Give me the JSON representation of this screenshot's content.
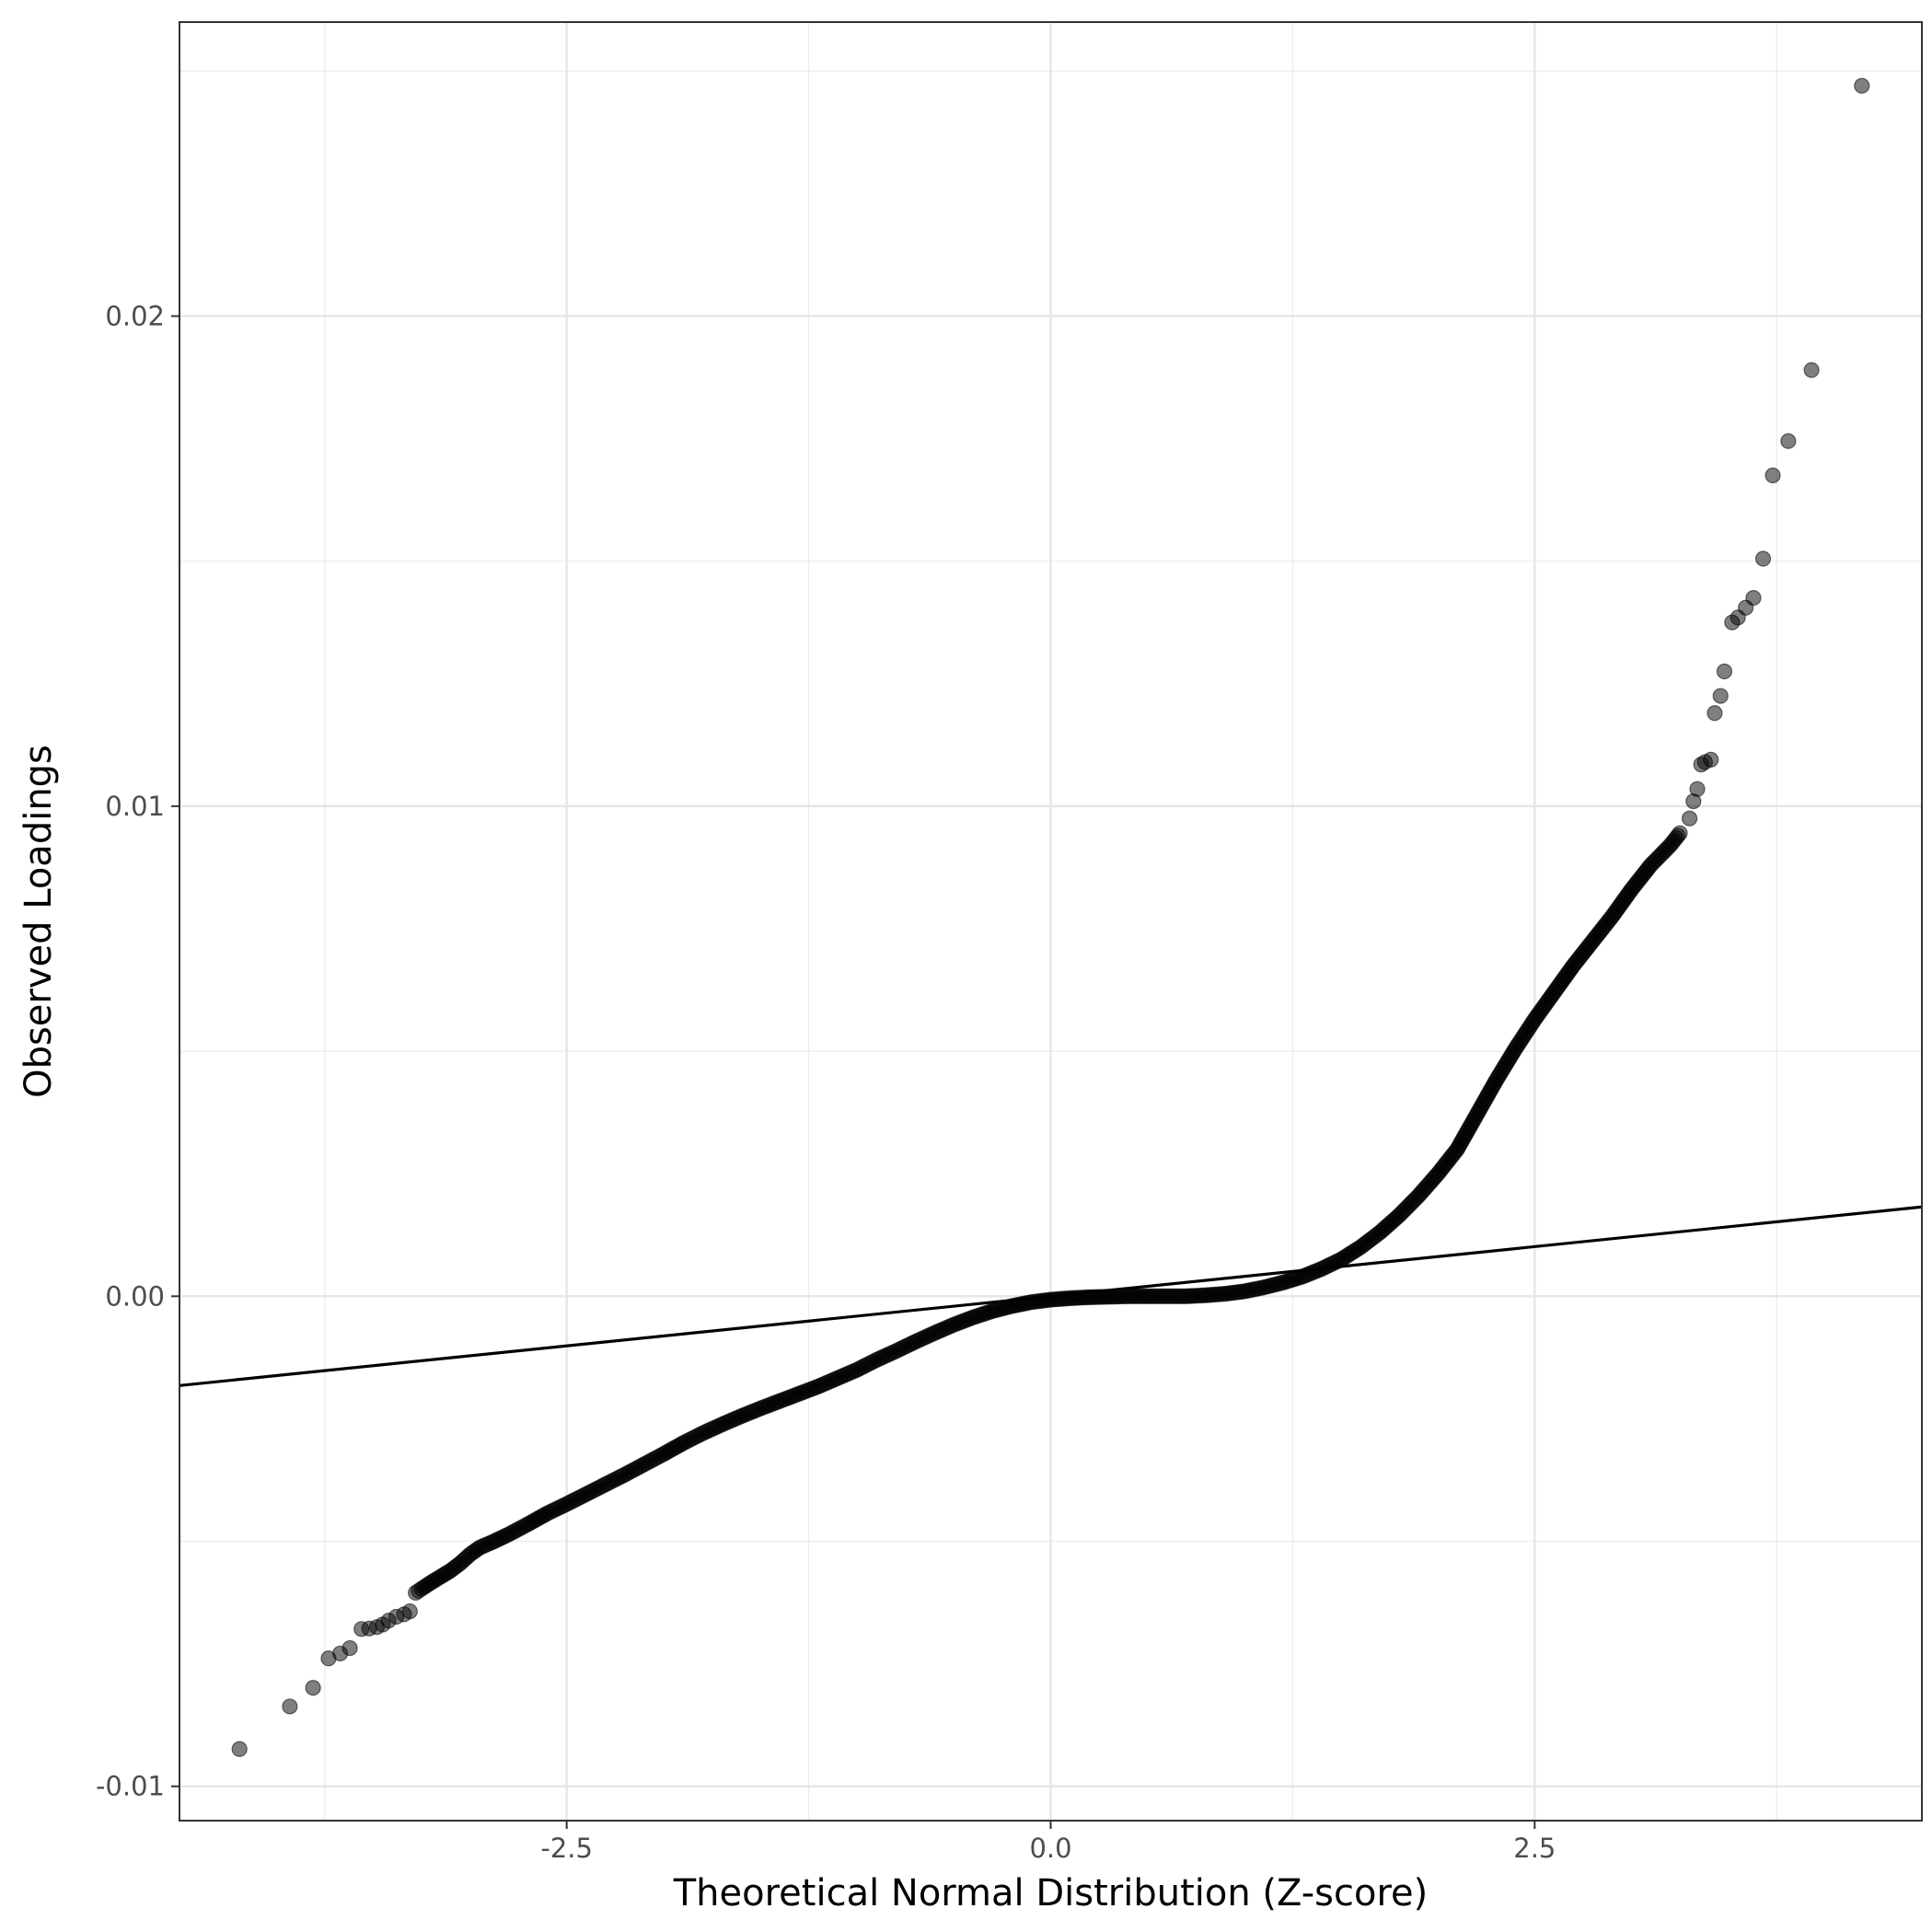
{
  "chart_data": {
    "type": "scatter",
    "title": "",
    "xlabel": "Theoretical Normal Distribution (Z-score)",
    "ylabel": "Observed Loadings",
    "xlim": [
      -4.5,
      4.5
    ],
    "ylim": [
      -0.0107,
      0.026
    ],
    "x_ticks": [
      {
        "value": -2.5,
        "label": "-2.5"
      },
      {
        "value": 0.0,
        "label": "0.0"
      },
      {
        "value": 2.5,
        "label": "2.5"
      }
    ],
    "y_ticks": [
      {
        "value": -0.01,
        "label": "-0.01"
      },
      {
        "value": 0.0,
        "label": "0.00"
      },
      {
        "value": 0.01,
        "label": "0.01"
      },
      {
        "value": 0.02,
        "label": "0.02"
      }
    ],
    "grid": true,
    "point_color": "#000000",
    "point_opacity": 0.5,
    "reference_line": {
      "slope": 0.000405,
      "intercept": 0.0,
      "color": "#000000"
    },
    "series": [
      {
        "points": [
          [
            -4.19,
            -0.00924
          ],
          [
            -3.93,
            -0.00837
          ],
          [
            -3.81,
            -0.00799
          ],
          [
            -3.73,
            -0.00739
          ],
          [
            -3.67,
            -0.00729
          ],
          [
            -3.62,
            -0.00718
          ],
          [
            -3.56,
            -0.00679
          ],
          [
            -3.52,
            -0.00678
          ],
          [
            -3.48,
            -0.00675
          ],
          [
            -3.45,
            -0.0067
          ],
          [
            -3.42,
            -0.00662
          ],
          [
            -3.38,
            -0.00654
          ],
          [
            -3.34,
            -0.00649
          ],
          [
            -3.31,
            -0.00643
          ],
          [
            -3.28,
            -0.00605
          ],
          [
            -3.25,
            -0.00597
          ],
          [
            -3.2,
            -0.00584
          ],
          [
            -3.15,
            -0.00572
          ],
          [
            -3.1,
            -0.0056
          ],
          [
            -3.05,
            -0.00545
          ],
          [
            -3.0,
            -0.00527
          ],
          [
            -2.95,
            -0.00513
          ],
          [
            -2.88,
            -0.00501
          ],
          [
            -2.8,
            -0.00486
          ],
          [
            -2.7,
            -0.00465
          ],
          [
            -2.6,
            -0.00443
          ],
          [
            -2.5,
            -0.00424
          ],
          [
            -2.4,
            -0.00404
          ],
          [
            -2.3,
            -0.00384
          ],
          [
            -2.2,
            -0.00364
          ],
          [
            -2.1,
            -0.00343
          ],
          [
            -2.0,
            -0.00322
          ],
          [
            -1.9,
            -0.003
          ],
          [
            -1.8,
            -0.0028
          ],
          [
            -1.7,
            -0.00262
          ],
          [
            -1.6,
            -0.00245
          ],
          [
            -1.5,
            -0.00229
          ],
          [
            -1.4,
            -0.00214
          ],
          [
            -1.3,
            -0.00199
          ],
          [
            -1.2,
            -0.00184
          ],
          [
            -1.1,
            -0.00167
          ],
          [
            -1.0,
            -0.0015
          ],
          [
            -0.9,
            -0.0013
          ],
          [
            -0.8,
            -0.00112
          ],
          [
            -0.7,
            -0.00093
          ],
          [
            -0.6,
            -0.00075
          ],
          [
            -0.5,
            -0.00058
          ],
          [
            -0.4,
            -0.00043
          ],
          [
            -0.3,
            -0.0003
          ],
          [
            -0.2,
            -0.0002
          ],
          [
            -0.1,
            -0.00012
          ],
          [
            0.0,
            -7e-05
          ],
          [
            0.1,
            -4e-05
          ],
          [
            0.2,
            -2e-05
          ],
          [
            0.3,
            -1e-05
          ],
          [
            0.4,
            0.0
          ],
          [
            0.5,
            0.0
          ],
          [
            0.6,
            0.0
          ],
          [
            0.7,
            0.0
          ],
          [
            0.8,
            2e-05
          ],
          [
            0.9,
            5e-05
          ],
          [
            1.0,
            0.0001
          ],
          [
            1.1,
            0.00018
          ],
          [
            1.2,
            0.00028
          ],
          [
            1.3,
            0.0004
          ],
          [
            1.4,
            0.00056
          ],
          [
            1.5,
            0.00075
          ],
          [
            1.6,
            0.001
          ],
          [
            1.7,
            0.0013
          ],
          [
            1.8,
            0.00165
          ],
          [
            1.9,
            0.00205
          ],
          [
            2.0,
            0.0025
          ],
          [
            2.1,
            0.003
          ],
          [
            2.2,
            0.0037
          ],
          [
            2.3,
            0.0044
          ],
          [
            2.4,
            0.00505
          ],
          [
            2.5,
            0.00565
          ],
          [
            2.6,
            0.0062
          ],
          [
            2.7,
            0.00675
          ],
          [
            2.8,
            0.00725
          ],
          [
            2.9,
            0.00775
          ],
          [
            3.0,
            0.0083
          ],
          [
            3.1,
            0.0088
          ],
          [
            3.2,
            0.0092
          ],
          [
            3.25,
            0.00945
          ],
          [
            3.3,
            0.00975
          ],
          [
            3.32,
            0.0101
          ],
          [
            3.34,
            0.01035
          ],
          [
            3.36,
            0.01085
          ],
          [
            3.38,
            0.0109
          ],
          [
            3.41,
            0.01095
          ],
          [
            3.43,
            0.0119
          ],
          [
            3.46,
            0.01225
          ],
          [
            3.48,
            0.01275
          ],
          [
            3.52,
            0.01375
          ],
          [
            3.55,
            0.01385
          ],
          [
            3.59,
            0.01405
          ],
          [
            3.63,
            0.01425
          ],
          [
            3.68,
            0.01505
          ],
          [
            3.73,
            0.01675
          ],
          [
            3.81,
            0.01745
          ],
          [
            3.93,
            0.0189
          ],
          [
            4.19,
            0.0247
          ]
        ]
      }
    ]
  }
}
